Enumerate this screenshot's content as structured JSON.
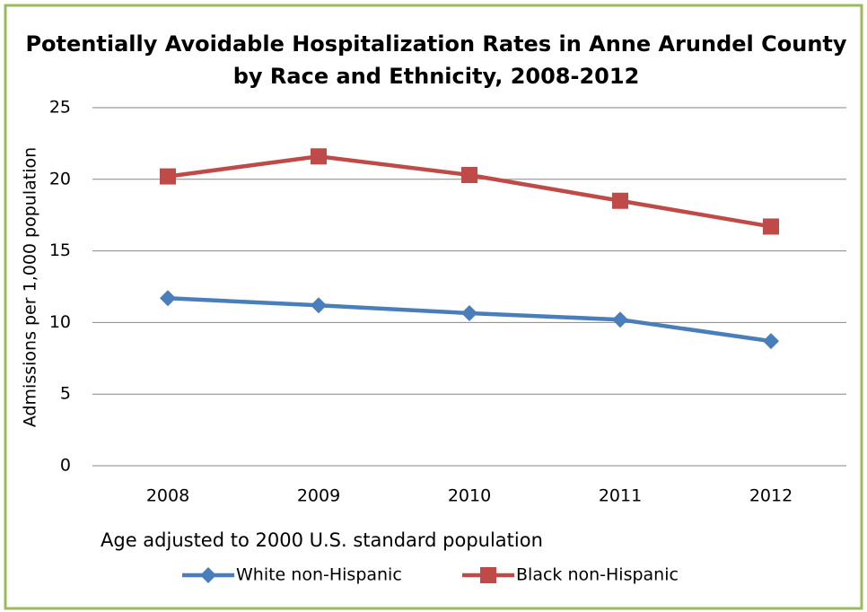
{
  "chart_data": {
    "type": "line",
    "title": "Potentially Avoidable Hospitalization Rates in Anne Arundel County by Race and Ethnicity, 2008-2012",
    "y_label": "Admissions per 1,000 population",
    "annotation": "Age adjusted to 2000 U.S. standard population",
    "categories": [
      "2008",
      "2009",
      "2010",
      "2011",
      "2012"
    ],
    "series": [
      {
        "name": "White non-Hispanic",
        "color": "#4a7ebb",
        "marker": "diamond",
        "values": [
          11.7,
          11.2,
          10.65,
          10.2,
          8.7
        ]
      },
      {
        "name": "Black non-Hispanic",
        "color": "#be4b48",
        "marker": "square",
        "values": [
          20.2,
          21.6,
          20.3,
          18.5,
          16.7
        ]
      }
    ],
    "ylim": [
      0,
      25
    ],
    "yticks": [
      0,
      5,
      10,
      15,
      20,
      25
    ],
    "grid": true,
    "legend": "bottom"
  }
}
